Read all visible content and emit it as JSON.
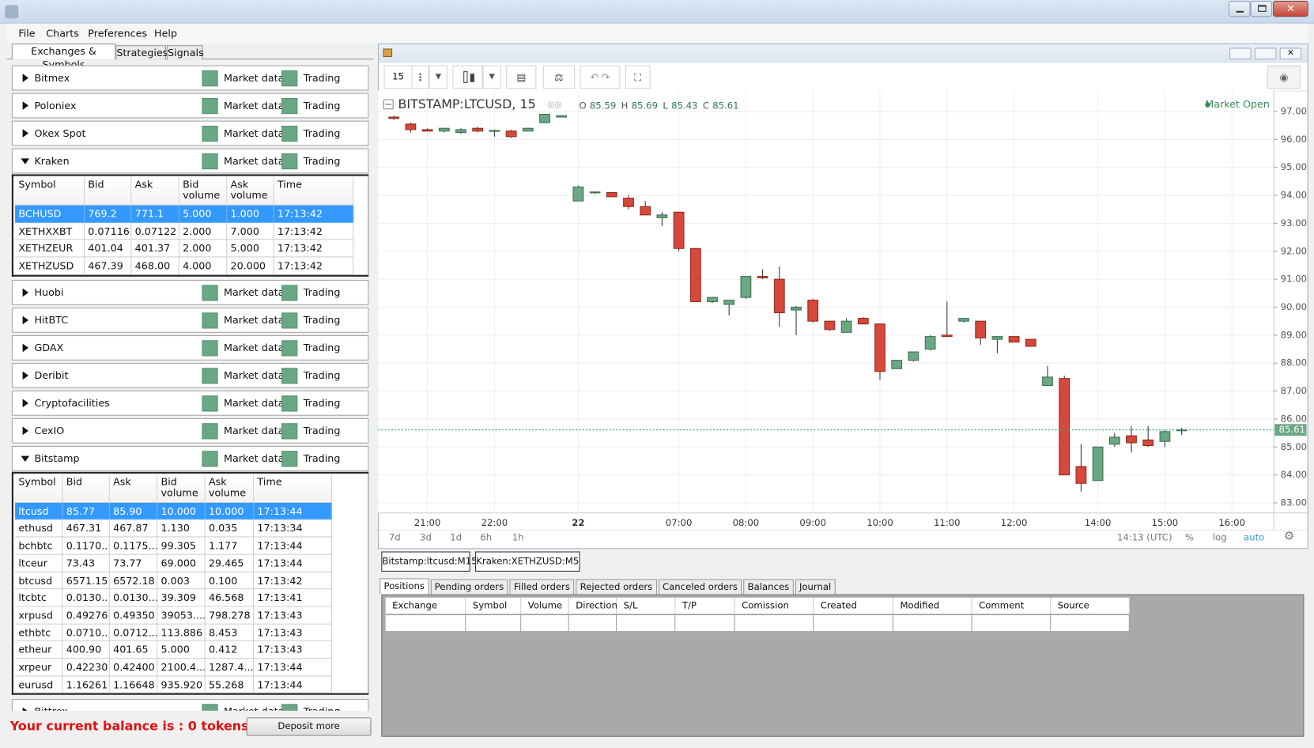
{
  "window": {
    "menu": [
      "File",
      "Charts",
      "Preferences",
      "Help"
    ]
  },
  "left_panel": {
    "tabs": [
      "Exchanges & Symbols",
      "Strategies",
      "Signals"
    ],
    "status_labels": [
      "Market data",
      "Trading"
    ],
    "exchanges": [
      {
        "name": "Bitmex"
      },
      {
        "name": "Poloniex"
      },
      {
        "name": "Okex Spot"
      },
      {
        "name": "Kraken",
        "table": {
          "columns": [
            "Symbol",
            "Bid",
            "Ask",
            "Bid volume",
            "Ask volume",
            "Time"
          ],
          "rows": [
            [
              "BCHUSD",
              "769.2",
              "771.1",
              "5.000",
              "1.000",
              "17:13:42"
            ],
            [
              "XETHXXBT",
              "0.07116",
              "0.07122",
              "2.000",
              "7.000",
              "17:13:42"
            ],
            [
              "XETHZEUR",
              "401.04",
              "401.37",
              "2.000",
              "5.000",
              "17:13:42"
            ],
            [
              "XETHZUSD",
              "467.39",
              "468.00",
              "4.000",
              "20.000",
              "17:13:42"
            ]
          ]
        }
      },
      {
        "name": "Huobi"
      },
      {
        "name": "HitBTC"
      },
      {
        "name": "GDAX"
      },
      {
        "name": "Deribit"
      },
      {
        "name": "Cryptofacilities"
      },
      {
        "name": "CexIO"
      },
      {
        "name": "Bitstamp",
        "table": {
          "columns": [
            "Symbol",
            "Bid",
            "Ask",
            "Bid volume",
            "Ask volume",
            "Time"
          ],
          "rows": [
            [
              "ltcusd",
              "85.77",
              "85.90",
              "10.000",
              "10.000",
              "17:13:44"
            ],
            [
              "ethusd",
              "467.31",
              "467.87",
              "1.130",
              "0.035",
              "17:13:34"
            ],
            [
              "bchbtc",
              "0.1170...",
              "0.1175...",
              "99.305",
              "1.177",
              "17:13:44"
            ],
            [
              "ltceur",
              "73.43",
              "73.77",
              "69.000",
              "29.465",
              "17:13:44"
            ],
            [
              "btcusd",
              "6571.15",
              "6572.18",
              "0.003",
              "0.100",
              "17:13:42"
            ],
            [
              "ltcbtc",
              "0.0130...",
              "0.0130...",
              "39.309",
              "46.568",
              "17:13:41"
            ],
            [
              "xrpusd",
              "0.49276",
              "0.49350",
              "39053....",
              "798.278",
              "17:13:43"
            ],
            [
              "ethbtc",
              "0.0710...",
              "0.0712...",
              "113.886",
              "8.453",
              "17:13:43"
            ],
            [
              "etheur",
              "400.90",
              "401.65",
              "5.000",
              "0.412",
              "17:13:43"
            ],
            [
              "xrpeur",
              "0.42230",
              "0.42400",
              "2100.4...",
              "1287.4...",
              "17:13:44"
            ],
            [
              "eurusd",
              "1.16261",
              "1.16648",
              "935.920",
              "55.268",
              "17:13:44"
            ]
          ]
        }
      },
      {
        "name": "Bittrex"
      }
    ]
  },
  "balance": {
    "message": "Your current balance is : 0 tokens",
    "button": "Deposit more"
  },
  "chart_window": {
    "interval": "15",
    "range_buttons": [
      "7d",
      "3d",
      "1d",
      "6h",
      "1h"
    ],
    "clock": "14:13 (UTC)",
    "scale_options": [
      "%",
      "log",
      "auto"
    ],
    "chart_tabs": [
      "Bitstamp:ltcusd:M15",
      "Kraken:XETHZUSD:M5"
    ]
  },
  "orders": {
    "tabs": [
      "Positions",
      "Pending orders",
      "Filled orders",
      "Rejected orders",
      "Canceled orders",
      "Balances",
      "Journal"
    ],
    "columns": [
      "Exchange",
      "Symbol",
      "Volume",
      "Direction",
      "S/L",
      "T/P",
      "Comission",
      "Created",
      "Modified",
      "Comment",
      "Source"
    ]
  },
  "chart_data": {
    "type": "candlestick",
    "title": "BITSTAMP:LTCUSD, 15",
    "status": "Market Open",
    "ohlc_labels": [
      "O",
      "H",
      "L",
      "C"
    ],
    "categories": [
      null,
      null,
      "21:00",
      null,
      null,
      null,
      "22:00",
      null,
      null,
      null,
      null,
      "22",
      null,
      null,
      null,
      null,
      null,
      "07:00",
      null,
      null,
      null,
      "08:00",
      null,
      null,
      null,
      "09:00",
      null,
      null,
      null,
      "10:00",
      null,
      null,
      null,
      "11:00",
      null,
      null,
      null,
      "12:00",
      null,
      null,
      null,
      null,
      "14:00",
      null,
      null,
      null,
      "15:00",
      null,
      null,
      null,
      "16:00",
      null
    ],
    "open": [
      96.8,
      96.55,
      96.35,
      96.3,
      96.25,
      96.4,
      96.3,
      96.3,
      96.3,
      96.6,
      96.8,
      93.8,
      94.1,
      94.1,
      93.9,
      93.6,
      93.2,
      93.4,
      92.1,
      90.2,
      90.1,
      90.35,
      91.1,
      91.0,
      89.9,
      90.25,
      89.5,
      89.1,
      89.6,
      89.4,
      87.8,
      88.1,
      88.5,
      89.0,
      89.5,
      89.5,
      88.85,
      88.95,
      88.85,
      87.2,
      87.45,
      84.3,
      83.8,
      85.1,
      85.4,
      85.25,
      85.2,
      85.59,
      null,
      null,
      null,
      null
    ],
    "high": [
      96.85,
      96.6,
      96.4,
      96.4,
      96.4,
      96.45,
      96.35,
      96.35,
      96.4,
      96.9,
      96.85,
      94.35,
      94.15,
      94.1,
      94.0,
      93.8,
      93.4,
      93.4,
      92.1,
      90.35,
      90.25,
      91.1,
      91.35,
      91.45,
      90.05,
      90.3,
      89.5,
      89.6,
      89.65,
      89.4,
      88.1,
      88.4,
      89.0,
      90.2,
      89.6,
      89.5,
      88.95,
      88.95,
      88.85,
      87.9,
      87.55,
      85.1,
      85.0,
      85.5,
      85.75,
      85.75,
      85.6,
      85.69,
      null,
      null,
      null,
      null
    ],
    "low": [
      96.7,
      96.25,
      96.3,
      96.25,
      96.2,
      96.25,
      96.1,
      96.05,
      96.3,
      96.6,
      96.8,
      93.8,
      94.05,
      93.95,
      93.5,
      93.3,
      92.9,
      92.0,
      90.2,
      90.15,
      89.7,
      90.3,
      91.0,
      89.3,
      89.0,
      89.45,
      89.15,
      89.1,
      89.4,
      87.4,
      87.8,
      88.05,
      88.45,
      88.95,
      89.45,
      88.65,
      88.35,
      88.75,
      88.6,
      87.2,
      84.0,
      83.4,
      83.8,
      85.0,
      84.8,
      85.0,
      85.0,
      85.43,
      null,
      null,
      null,
      null
    ],
    "close": [
      96.75,
      96.35,
      96.3,
      96.4,
      96.35,
      96.3,
      96.32,
      96.1,
      96.4,
      96.9,
      96.85,
      94.3,
      94.12,
      93.95,
      93.6,
      93.3,
      93.3,
      92.1,
      90.2,
      90.35,
      90.25,
      91.1,
      91.05,
      89.8,
      90.0,
      89.5,
      89.2,
      89.5,
      89.4,
      87.7,
      88.1,
      88.4,
      88.95,
      88.95,
      89.6,
      88.9,
      88.95,
      88.75,
      88.6,
      87.5,
      84.0,
      83.7,
      85.0,
      85.35,
      85.15,
      85.05,
      85.55,
      85.61,
      null,
      null,
      null,
      null
    ],
    "up_color": "#6aa883",
    "down_color": "#d6483b",
    "ylim": [
      82.64,
      97.75
    ],
    "yticks": [
      {
        "value": 83,
        "label": "83.00"
      },
      {
        "value": 84,
        "label": "84.00"
      },
      {
        "value": 85,
        "label": "85.00"
      },
      {
        "value": 86,
        "label": "86.00"
      },
      {
        "value": 87,
        "label": "87.00"
      },
      {
        "value": 88,
        "label": "88.00"
      },
      {
        "value": 89,
        "label": "89.00"
      },
      {
        "value": 90,
        "label": "90.00"
      },
      {
        "value": 91,
        "label": "91.00"
      },
      {
        "value": 92,
        "label": "92.00"
      },
      {
        "value": 93,
        "label": "93.00"
      },
      {
        "value": 94,
        "label": "94.00"
      },
      {
        "value": 95,
        "label": "95.00"
      },
      {
        "value": 96,
        "label": "96.00"
      },
      {
        "value": 97,
        "label": "97.00"
      }
    ],
    "grid": true
  }
}
